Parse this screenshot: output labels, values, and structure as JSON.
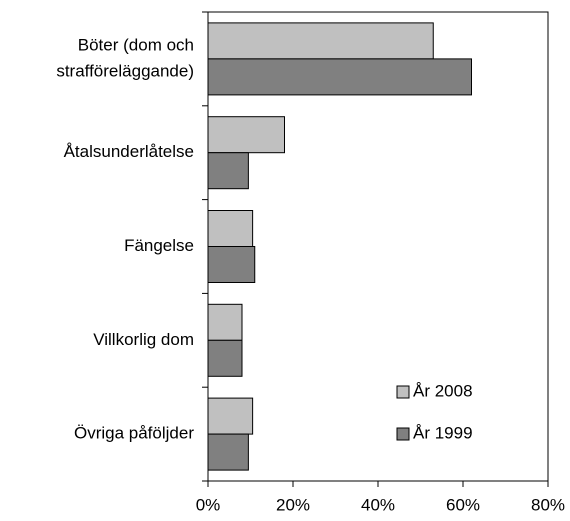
{
  "chart_data": {
    "type": "hbar",
    "categories": [
      [
        "Böter (dom och",
        "strafföreläggande)"
      ],
      [
        "Åtalsunderlåtelse"
      ],
      [
        "Fängelse"
      ],
      [
        "Villkorlig dom"
      ],
      [
        "Övriga påföljder"
      ]
    ],
    "series": [
      {
        "name": "År 2008",
        "color": "#c0c0c0",
        "values": [
          53,
          18,
          10.5,
          8,
          10.5
        ]
      },
      {
        "name": "År 1999",
        "color": "#808080",
        "values": [
          62,
          9.5,
          11,
          8,
          9.5
        ]
      }
    ],
    "xlim": [
      0,
      80
    ],
    "xticks": [
      {
        "value": 0,
        "label": "0%"
      },
      {
        "value": 20,
        "label": "20%"
      },
      {
        "value": 40,
        "label": "40%"
      },
      {
        "value": 60,
        "label": "60%"
      },
      {
        "value": 80,
        "label": "80%"
      }
    ],
    "legend": "lower right"
  }
}
